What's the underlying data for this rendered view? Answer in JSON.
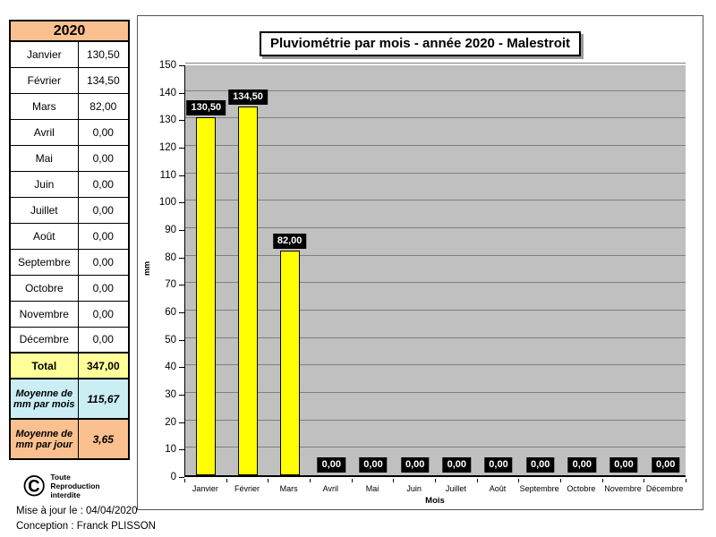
{
  "table": {
    "year_header": "2020",
    "months": [
      {
        "label": "Janvier",
        "value": "130,50"
      },
      {
        "label": "Février",
        "value": "134,50"
      },
      {
        "label": "Mars",
        "value": "82,00"
      },
      {
        "label": "Avril",
        "value": "0,00"
      },
      {
        "label": "Mai",
        "value": "0,00"
      },
      {
        "label": "Juin",
        "value": "0,00"
      },
      {
        "label": "Juillet",
        "value": "0,00"
      },
      {
        "label": "Août",
        "value": "0,00"
      },
      {
        "label": "Septembre",
        "value": "0,00"
      },
      {
        "label": "Octobre",
        "value": "0,00"
      },
      {
        "label": "Novembre",
        "value": "0,00"
      },
      {
        "label": "Décembre",
        "value": "0,00"
      }
    ],
    "total": {
      "label": "Total",
      "value": "347,00"
    },
    "average_per_month": {
      "label": "Moyenne de mm par mois",
      "value": "115,67"
    },
    "average_per_day": {
      "label": "Moyenne de mm par jour",
      "value": "3,65"
    }
  },
  "copyright": {
    "symbol": "©",
    "text_lines": [
      "Toute",
      "Reproduction",
      "interdite"
    ]
  },
  "footer": {
    "updated": "Mise à jour le : 04/04/2020",
    "credit": "Conception : Franck PLISSON"
  },
  "colors": {
    "table_header_bg": "#FAC090",
    "total_bg": "#FFFF99",
    "avg_month_bg": "#CBEEF5",
    "avg_day_bg": "#FAC090",
    "bar_fill": "#FFFF00",
    "plot_bg": "#C0C0C0",
    "gridline": "#7F7F7F",
    "value_label_bg": "#000000",
    "value_label_text": "#FFFFFF"
  },
  "chart_data": {
    "type": "bar",
    "title": "Pluviométrie par mois - année 2020 - Malestroit",
    "categories": [
      "Janvier",
      "Février",
      "Mars",
      "Avril",
      "Mai",
      "Juin",
      "Juillet",
      "Août",
      "Septembre",
      "Octobre",
      "Novembre",
      "Décembre"
    ],
    "values": [
      130.5,
      134.5,
      82,
      0,
      0,
      0,
      0,
      0,
      0,
      0,
      0,
      0
    ],
    "value_labels": [
      "130,50",
      "134,50",
      "82,00",
      "0,00",
      "0,00",
      "0,00",
      "0,00",
      "0,00",
      "0,00",
      "0,00",
      "0,00",
      "0,00"
    ],
    "xlabel": "Mois",
    "ylabel": "mm",
    "ylim": [
      0,
      150
    ],
    "ytick_step": 10,
    "grid": true,
    "legend": false,
    "plot_background": "#C0C0C0",
    "bar_color": "#FFFF00"
  }
}
